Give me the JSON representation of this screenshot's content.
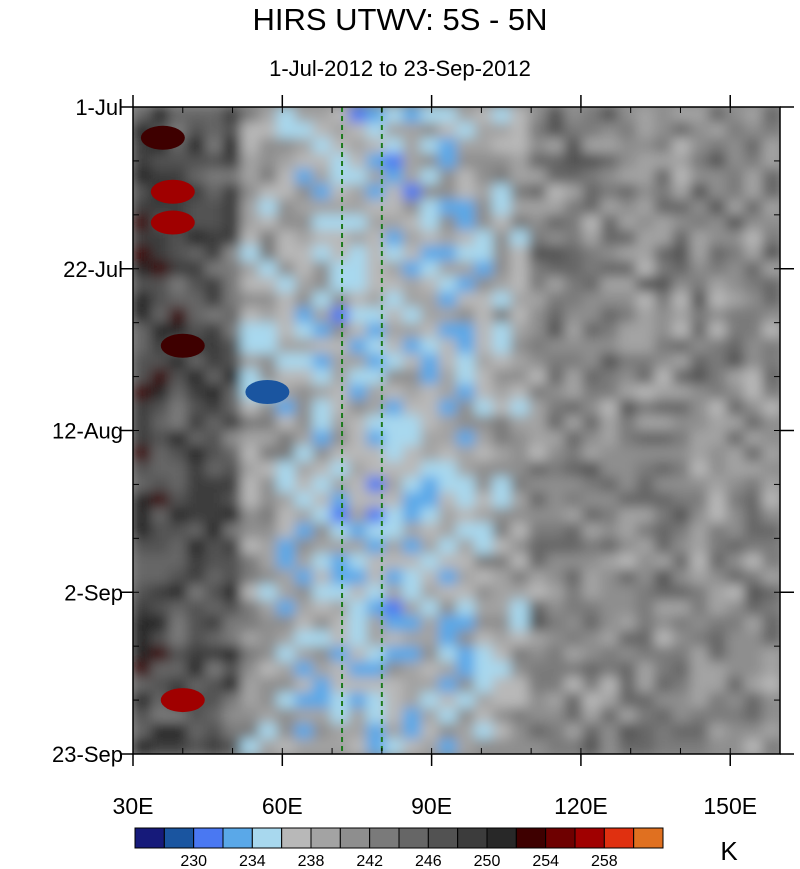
{
  "chart_data": {
    "type": "heatmap",
    "title": "HIRS UTWV: 5S - 5N",
    "subtitle": "1-Jul-2012 to 23-Sep-2012",
    "x_axis": {
      "range": [
        30,
        160
      ],
      "ticks": [
        {
          "value": 30,
          "label": "30E"
        },
        {
          "value": 60,
          "label": "60E"
        },
        {
          "value": 90,
          "label": "90E"
        },
        {
          "value": 120,
          "label": "120E"
        },
        {
          "value": 150,
          "label": "150E"
        }
      ],
      "minor_step": 10
    },
    "y_axis": {
      "range_days": [
        0,
        84
      ],
      "ticks": [
        {
          "day": 0,
          "label": "1-Jul"
        },
        {
          "day": 21,
          "label": "22-Jul"
        },
        {
          "day": 42,
          "label": "12-Aug"
        },
        {
          "day": 63,
          "label": "2-Sep"
        },
        {
          "day": 84,
          "label": "23-Sep"
        }
      ],
      "minor_step_days": 7,
      "direction": "top-to-bottom"
    },
    "reference_lines": [
      {
        "x": 72,
        "style": "dashed",
        "color": "#1e7a1e"
      },
      {
        "x": 80,
        "style": "dashed",
        "color": "#1e7a1e"
      }
    ],
    "colorbar": {
      "unit": "K",
      "levels": [
        228,
        230,
        232,
        234,
        236,
        238,
        240,
        242,
        244,
        246,
        248,
        250,
        252,
        254,
        256,
        258,
        260
      ],
      "labels": [
        {
          "value": 230,
          "label": "230"
        },
        {
          "value": 234,
          "label": "234"
        },
        {
          "value": 238,
          "label": "238"
        },
        {
          "value": 242,
          "label": "242"
        },
        {
          "value": 246,
          "label": "246"
        },
        {
          "value": 250,
          "label": "250"
        },
        {
          "value": 254,
          "label": "254"
        },
        {
          "value": 258,
          "label": "258"
        }
      ],
      "colors": [
        "#161a7a",
        "#1a55a0",
        "#4a78f2",
        "#5aa8e8",
        "#a8d8ee",
        "#b8b8b8",
        "#a3a3a3",
        "#8e8e8e",
        "#7a7a7a",
        "#666666",
        "#525252",
        "#3c3c3c",
        "#282828",
        "#3e0000",
        "#6e0000",
        "#a00000",
        "#e03010",
        "#e07020"
      ]
    },
    "field_description_features": [
      {
        "lon": 36,
        "day": 4,
        "value": 252
      },
      {
        "lon": 38,
        "day": 11,
        "value": 256
      },
      {
        "lon": 38,
        "day": 15,
        "value": 256
      },
      {
        "lon": 40,
        "day": 31,
        "value": 252
      },
      {
        "lon": 57,
        "day": 37,
        "value": 229
      },
      {
        "lon": 40,
        "day": 77,
        "value": 256
      }
    ]
  }
}
